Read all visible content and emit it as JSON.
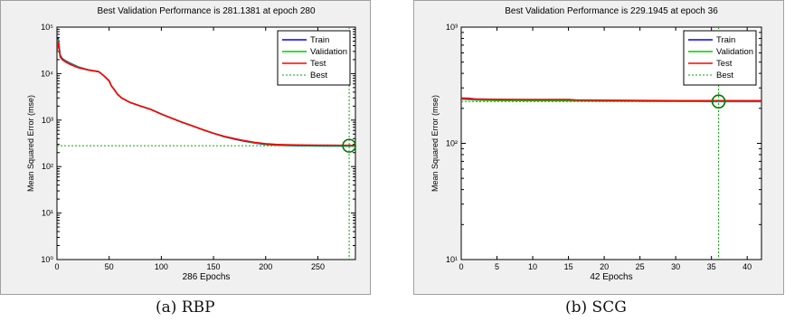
{
  "chart_data": [
    {
      "type": "line",
      "title": "Best Validation Performance is 281.1381 at epoch 280",
      "xlabel": "286 Epochs",
      "ylabel": "Mean Squared Error  (mse)",
      "caption": "(a) RBP",
      "xlim": [
        0,
        286
      ],
      "ylim": [
        1,
        100000
      ],
      "yscale": "log",
      "grid": false,
      "legend_position": "top-right",
      "x_ticks": [
        0,
        50,
        100,
        150,
        200,
        250
      ],
      "x_tick_labels": [
        "0",
        "50",
        "100",
        "150",
        "200",
        "250"
      ],
      "y_ticks": [
        1,
        10,
        100,
        1000,
        10000,
        100000
      ],
      "y_tick_labels": [
        "10⁰",
        "10¹",
        "10²",
        "10³",
        "10⁴",
        "10⁵"
      ],
      "series": [
        {
          "name": "Train",
          "color": "#0000ff",
          "x": [
            0,
            1,
            2,
            3,
            5,
            8,
            12,
            20,
            30,
            40,
            45,
            50,
            52,
            55,
            58,
            62,
            70,
            80,
            90,
            100,
            110,
            120,
            130,
            140,
            150,
            160,
            170,
            180,
            190,
            200,
            210,
            220,
            230,
            240,
            250,
            260,
            270,
            280,
            286
          ],
          "y": [
            30000,
            60000,
            40000,
            25000,
            21000,
            19000,
            17000,
            14000,
            12000,
            11000,
            9000,
            7000,
            5500,
            4500,
            3600,
            3000,
            2400,
            2000,
            1700,
            1350,
            1100,
            900,
            750,
            620,
            520,
            440,
            390,
            350,
            320,
            300,
            290,
            285,
            282,
            280,
            279,
            278,
            277,
            276,
            276
          ]
        },
        {
          "name": "Validation",
          "color": "#00cc00",
          "x": [
            0,
            1,
            2,
            3,
            5,
            8,
            12,
            20,
            30,
            40,
            45,
            50,
            52,
            55,
            58,
            62,
            70,
            80,
            90,
            100,
            110,
            120,
            130,
            140,
            150,
            160,
            170,
            180,
            190,
            200,
            210,
            220,
            230,
            240,
            250,
            260,
            270,
            280,
            286
          ],
          "y": [
            30000,
            55000,
            38000,
            24000,
            20500,
            18500,
            16500,
            13800,
            12000,
            11000,
            9000,
            7000,
            5500,
            4500,
            3600,
            3000,
            2400,
            2000,
            1700,
            1350,
            1100,
            900,
            750,
            620,
            520,
            445,
            395,
            355,
            325,
            305,
            295,
            289,
            286,
            284,
            283,
            282,
            281.5,
            281.1381,
            281.5
          ]
        },
        {
          "name": "Test",
          "color": "#ff0000",
          "x": [
            0,
            1,
            2,
            3,
            5,
            8,
            12,
            20,
            30,
            40,
            45,
            50,
            52,
            55,
            58,
            62,
            70,
            80,
            90,
            100,
            110,
            120,
            130,
            140,
            150,
            160,
            170,
            180,
            190,
            200,
            210,
            220,
            230,
            240,
            250,
            260,
            270,
            280,
            286
          ],
          "y": [
            30000,
            50000,
            35000,
            23000,
            20000,
            18000,
            16000,
            13500,
            12000,
            11000,
            9000,
            7000,
            5500,
            4500,
            3600,
            3000,
            2400,
            2000,
            1700,
            1350,
            1100,
            900,
            750,
            620,
            520,
            450,
            400,
            360,
            330,
            310,
            300,
            295,
            292,
            290,
            289,
            288,
            287,
            287,
            287
          ]
        }
      ],
      "best": {
        "x": 280,
        "y": 281.1381
      },
      "legend": [
        "Train",
        "Validation",
        "Test",
        "Best"
      ]
    },
    {
      "type": "line",
      "title": "Best Validation Performance is 229.1945 at epoch 36",
      "xlabel": "42 Epochs",
      "ylabel": "Mean Squared Error  (mse)",
      "caption": "(b) SCG",
      "xlim": [
        0,
        42
      ],
      "ylim": [
        10,
        1000
      ],
      "yscale": "log",
      "grid": false,
      "legend_position": "top-right",
      "x_ticks": [
        0,
        5,
        10,
        15,
        20,
        25,
        30,
        35,
        40
      ],
      "x_tick_labels": [
        "0",
        "5",
        "10",
        "15",
        "20",
        "25",
        "30",
        "35",
        "40"
      ],
      "y_ticks": [
        10,
        100,
        1000
      ],
      "y_tick_labels": [
        "10¹",
        "10²",
        "10³"
      ],
      "series": [
        {
          "name": "Train",
          "color": "#0000ff",
          "x": [
            0,
            1,
            2,
            5,
            10,
            15,
            20,
            24,
            25,
            30,
            35,
            36,
            40,
            42
          ],
          "y": [
            245,
            244,
            240,
            238,
            236,
            234,
            234,
            233,
            231,
            230,
            229,
            229,
            229,
            229
          ]
        },
        {
          "name": "Validation",
          "color": "#00cc00",
          "x": [
            0,
            1,
            2,
            5,
            10,
            15,
            20,
            25,
            30,
            35,
            36,
            40,
            42
          ],
          "y": [
            240,
            238,
            236,
            234,
            233,
            232,
            231,
            230,
            230,
            229.5,
            229.1945,
            229.5,
            229.6
          ]
        },
        {
          "name": "Test",
          "color": "#ff0000",
          "x": [
            0,
            1,
            2,
            5,
            10,
            15,
            16,
            20,
            25,
            30,
            35,
            36,
            40,
            42
          ],
          "y": [
            243,
            242,
            240,
            239,
            238,
            238,
            236,
            235,
            234,
            233,
            233,
            233,
            233,
            233
          ]
        }
      ],
      "best": {
        "x": 36,
        "y": 229.1945
      },
      "legend": [
        "Train",
        "Validation",
        "Test",
        "Best"
      ]
    }
  ]
}
